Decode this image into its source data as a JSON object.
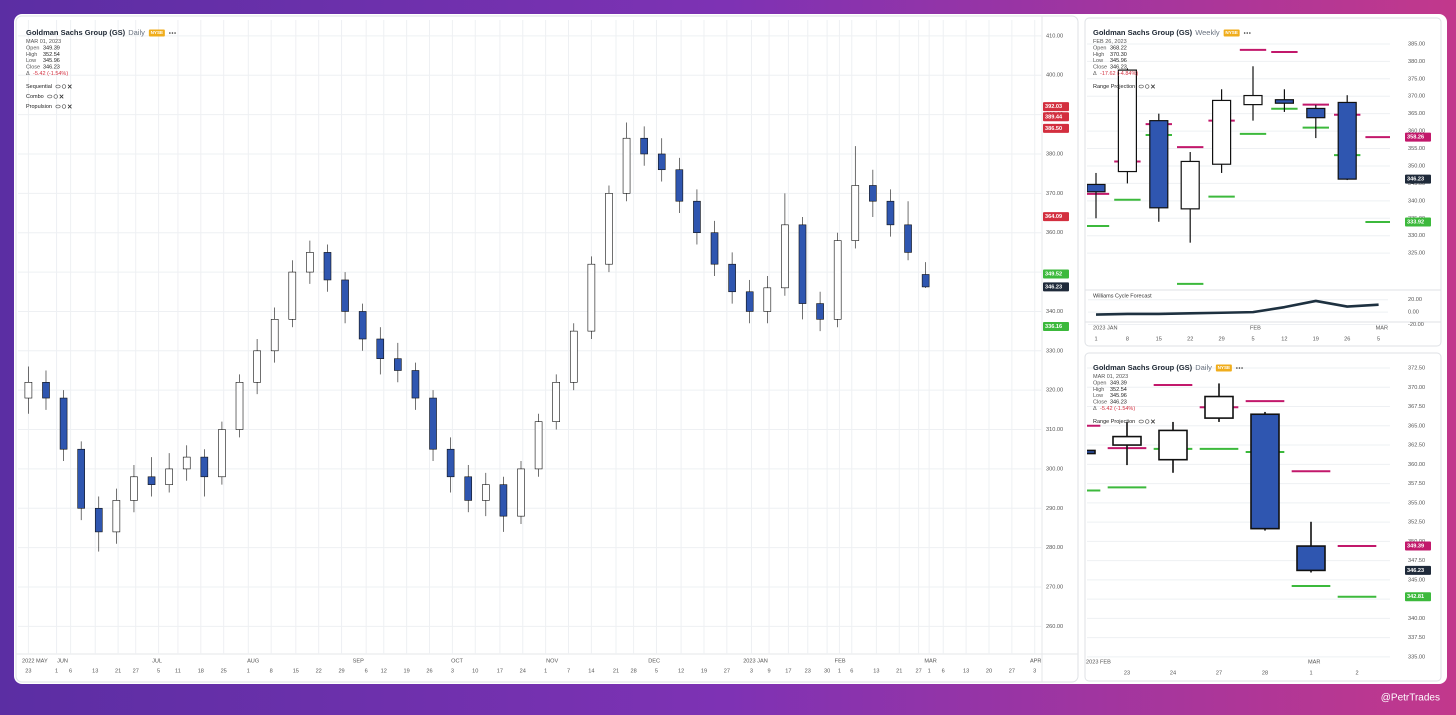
{
  "watermark": "@PetrTrades",
  "chart_data": [
    {
      "type": "candlestick",
      "title": "Goldman Sachs Group (GS)",
      "interval": "Daily",
      "exchange": "NYSE",
      "date": "MAR 01, 2023",
      "ohlc_names": [
        "Open",
        "High",
        "Low",
        "Close"
      ],
      "ohlc": [
        349.39,
        352.54,
        345.96,
        346.23
      ],
      "change_symbol": "Δ",
      "change": "-5.42 (-1.54%)",
      "indicators": [
        "Sequential",
        "Combo",
        "Propulsion"
      ],
      "up_color": "#ffffff",
      "down_color": "#2f56b0",
      "open": [
        318,
        322,
        318,
        305,
        290,
        284,
        292,
        298,
        296,
        300,
        303,
        298,
        310,
        322,
        330,
        338,
        350,
        355,
        348,
        340,
        333,
        328,
        325,
        318,
        305,
        298,
        292,
        296,
        288,
        300,
        312,
        322,
        335,
        352,
        370,
        384,
        380,
        376,
        368,
        360,
        352,
        345,
        340,
        346,
        362,
        342,
        338,
        358,
        372,
        368,
        362,
        349.39
      ],
      "high": [
        326,
        325,
        320,
        307,
        293,
        295,
        301,
        303,
        304,
        306,
        305,
        312,
        324,
        333,
        341,
        353,
        358,
        357,
        350,
        342,
        336,
        332,
        327,
        320,
        308,
        301,
        299,
        298,
        302,
        314,
        324,
        337,
        354,
        372,
        388,
        387,
        384,
        379,
        371,
        363,
        355,
        348,
        349,
        370,
        364,
        345,
        360,
        382,
        376,
        371,
        368,
        352.54
      ],
      "low": [
        314,
        315,
        302,
        287,
        279,
        281,
        289,
        293,
        294,
        297,
        293,
        296,
        308,
        319,
        327,
        336,
        347,
        345,
        337,
        330,
        324,
        322,
        315,
        302,
        294,
        289,
        288,
        284,
        286,
        298,
        310,
        320,
        333,
        350,
        368,
        377,
        373,
        365,
        357,
        349,
        342,
        337,
        337,
        344,
        338,
        335,
        336,
        356,
        364,
        359,
        353,
        345.96
      ],
      "close": [
        322,
        318,
        305,
        290,
        284,
        292,
        298,
        296,
        300,
        303,
        298,
        310,
        322,
        330,
        338,
        350,
        355,
        348,
        340,
        333,
        328,
        325,
        318,
        305,
        298,
        292,
        296,
        288,
        300,
        312,
        322,
        335,
        352,
        370,
        384,
        380,
        376,
        368,
        360,
        352,
        345,
        340,
        346,
        362,
        342,
        338,
        358,
        372,
        368,
        362,
        355,
        346.23
      ],
      "ylim": [
        254,
        412
      ],
      "yticks": [
        {
          "value": 260,
          "label": "260.00"
        },
        {
          "value": 270,
          "label": "270.00"
        },
        {
          "value": 280,
          "label": "280.00"
        },
        {
          "value": 290,
          "label": "290.00"
        },
        {
          "value": 300,
          "label": "300.00"
        },
        {
          "value": 310,
          "label": "310.00"
        },
        {
          "value": 320,
          "label": "320.00"
        },
        {
          "value": 330,
          "label": "330.00"
        },
        {
          "value": 340,
          "label": "340.00"
        },
        {
          "value": 350,
          "label": "350.00"
        },
        {
          "value": 360,
          "label": "360.00"
        },
        {
          "value": 370,
          "label": "370.00"
        },
        {
          "value": 380,
          "label": "380.00"
        },
        {
          "value": 390,
          "label": "390.00"
        },
        {
          "value": 400,
          "label": "400.00"
        },
        {
          "value": 410,
          "label": "410.00"
        }
      ],
      "xlim": [
        -0.25,
        57.5
      ],
      "xticks": [
        {
          "value": 0,
          "label": "23"
        },
        {
          "value": 1.6,
          "label": "1"
        },
        {
          "value": 2.4,
          "label": "6"
        },
        {
          "value": 3.8,
          "label": "13"
        },
        {
          "value": 5.1,
          "label": "21"
        },
        {
          "value": 6.1,
          "label": "27"
        },
        {
          "value": 7.4,
          "label": "5"
        },
        {
          "value": 8.5,
          "label": "11"
        },
        {
          "value": 9.8,
          "label": "18"
        },
        {
          "value": 11.1,
          "label": "25"
        },
        {
          "value": 12.5,
          "label": "1"
        },
        {
          "value": 13.8,
          "label": "8"
        },
        {
          "value": 15.2,
          "label": "15"
        },
        {
          "value": 16.5,
          "label": "22"
        },
        {
          "value": 17.8,
          "label": "29"
        },
        {
          "value": 19.2,
          "label": "6"
        },
        {
          "value": 20.2,
          "label": "12"
        },
        {
          "value": 21.5,
          "label": "19"
        },
        {
          "value": 22.8,
          "label": "26"
        },
        {
          "value": 24.1,
          "label": "3"
        },
        {
          "value": 25.4,
          "label": "10"
        },
        {
          "value": 26.8,
          "label": "17"
        },
        {
          "value": 28.1,
          "label": "24"
        },
        {
          "value": 29.4,
          "label": "1"
        },
        {
          "value": 30.7,
          "label": "7"
        },
        {
          "value": 32,
          "label": "14"
        },
        {
          "value": 33.4,
          "label": "21"
        },
        {
          "value": 34.4,
          "label": "28"
        },
        {
          "value": 35.7,
          "label": "5"
        },
        {
          "value": 37.1,
          "label": "12"
        },
        {
          "value": 38.4,
          "label": "19"
        },
        {
          "value": 39.7,
          "label": "27"
        },
        {
          "value": 41.1,
          "label": "3"
        },
        {
          "value": 42.1,
          "label": "9"
        },
        {
          "value": 43.2,
          "label": "17"
        },
        {
          "value": 44.3,
          "label": "23"
        },
        {
          "value": 45.4,
          "label": "30"
        },
        {
          "value": 46.1,
          "label": "1"
        },
        {
          "value": 46.8,
          "label": "6"
        },
        {
          "value": 48.2,
          "label": "13"
        },
        {
          "value": 49.5,
          "label": "21"
        },
        {
          "value": 50.6,
          "label": "27"
        },
        {
          "value": 51.2,
          "label": "1"
        },
        {
          "value": 52,
          "label": "6"
        },
        {
          "value": 53.3,
          "label": "13"
        },
        {
          "value": 54.6,
          "label": "20"
        },
        {
          "value": 55.9,
          "label": "27"
        },
        {
          "value": 57.2,
          "label": "3"
        }
      ],
      "month_ticks": [
        {
          "value": -0.2,
          "label": "2022 MAY"
        },
        {
          "value": 1.8,
          "label": "JUN"
        },
        {
          "value": 7.2,
          "label": "JUL"
        },
        {
          "value": 12.6,
          "label": "AUG"
        },
        {
          "value": 18.6,
          "label": "SEP"
        },
        {
          "value": 24.2,
          "label": "OCT"
        },
        {
          "value": 29.6,
          "label": "NOV"
        },
        {
          "value": 35.4,
          "label": "DEC"
        },
        {
          "value": 40.8,
          "label": "2023 JAN"
        },
        {
          "value": 46,
          "label": "FEB"
        },
        {
          "value": 51.1,
          "label": "MAR"
        },
        {
          "value": 57.1,
          "label": "APR"
        }
      ],
      "price_labels": [
        392.03,
        389.44,
        {
          "value": 386.5,
          "label": "386.50"
        },
        364.09,
        349.52,
        346.23,
        336.16
      ],
      "price_label_colors": [
        "#d32f3f",
        "#d32f3f",
        "#d32f3f",
        "#d32f3f",
        "#3cb93c",
        "#1f2a3a",
        "#3cb93c"
      ]
    },
    {
      "type": "candlestick",
      "title": "Goldman Sachs Group (GS)",
      "interval": "Weekly",
      "exchange": "NYSE",
      "date": "FEB 26, 2023",
      "ohlc_names": [
        "Open",
        "High",
        "Low",
        "Close"
      ],
      "ohlc": [
        368.22,
        {
          "value": 370.3,
          "label": "370.30"
        },
        345.96,
        346.23
      ],
      "change_symbol": "Δ",
      "change": "-17.62 (-4.84%)",
      "indicators": [
        "Range Projection"
      ],
      "up_color": "#ffffff",
      "down_color": "#2f56b0",
      "categories": [
        "1",
        "8",
        "15",
        "22",
        "29",
        "5",
        "12",
        "19",
        "26",
        "5"
      ],
      "month_ticks": [
        {
          "value": 0,
          "label": "2023 JAN"
        },
        {
          "value": 5,
          "label": "FEB"
        },
        {
          "value": 9,
          "label": "MAR"
        }
      ],
      "open": [
        344.7,
        348.4,
        363,
        337.7,
        350.5,
        367.6,
        369,
        366.5,
        368.22,
        null
      ],
      "high": [
        348,
        378,
        365,
        354,
        372,
        378.6,
        372,
        367.5,
        370.3,
        null
      ],
      "low": [
        335,
        345,
        334,
        328,
        348,
        363,
        365.5,
        358,
        345.96,
        null
      ],
      "close": [
        342.6,
        377.5,
        338,
        351.3,
        368.8,
        370.2,
        368,
        363.85,
        346.23,
        null
      ],
      "range_projection": {
        "high": [
          342,
          351.3,
          362,
          355.4,
          363,
          383.3,
          382.7,
          367.6,
          364.7,
          358.26
        ],
        "low": [
          332.8,
          340.3,
          358.9,
          316.2,
          341.2,
          359.2,
          366.4,
          361,
          353.1,
          333.92
        ],
        "high_color": "#c2186b",
        "low_color": "#3cb93c"
      },
      "ylim": [
        315,
        389
      ],
      "yticks": [
        {
          "value": 325,
          "label": "325.00"
        },
        {
          "value": 330,
          "label": "330.00"
        },
        {
          "value": 335,
          "label": "335.00"
        },
        {
          "value": 340,
          "label": "340.00"
        },
        {
          "value": 345,
          "label": "345.00"
        },
        {
          "value": 350,
          "label": "350.00"
        },
        {
          "value": 355,
          "label": "355.00"
        },
        {
          "value": 360,
          "label": "360.00"
        },
        {
          "value": 365,
          "label": "365.00"
        },
        {
          "value": 370,
          "label": "370.00"
        },
        {
          "value": 375,
          "label": "375.00"
        },
        {
          "value": 380,
          "label": "380.00"
        },
        {
          "value": 385,
          "label": "385.00"
        }
      ],
      "price_labels": [
        358.26,
        346.23,
        333.92
      ],
      "price_label_colors": [
        "#c2186b",
        "#1f2a3a",
        "#3cb93c"
      ],
      "subpanel": {
        "title": "Williams Cycle Forecast",
        "values": [
          -4,
          -3,
          -3,
          -2,
          -1,
          0,
          8,
          18,
          9,
          12
        ],
        "color": "#1e3140",
        "ylim": [
          -24,
          26
        ],
        "yticks": [
          {
            "value": 20,
            "label": "20.00"
          },
          {
            "value": 0,
            "label": "0.00"
          },
          {
            "value": -20,
            "label": "-20.00"
          }
        ]
      }
    },
    {
      "type": "candlestick",
      "title": "Goldman Sachs Group (GS)",
      "interval": "Daily",
      "exchange": "NYSE",
      "date": "MAR 01, 2023",
      "ohlc_names": [
        "Open",
        "High",
        "Low",
        "Close"
      ],
      "ohlc": [
        349.39,
        352.54,
        345.96,
        346.23
      ],
      "change_symbol": "Δ",
      "change": "-5.42 (-1.54%)",
      "indicators": [
        "Range Projection"
      ],
      "up_color": "#ffffff",
      "down_color": "#2f56b0",
      "categories": [
        null,
        "23",
        "24",
        "27",
        "28",
        "1",
        "2"
      ],
      "month_ticks": [
        {
          "value": 0,
          "label": "2023 FEB"
        },
        {
          "value": 5,
          "label": "MAR"
        }
      ],
      "open": [
        361.8,
        362.5,
        360.6,
        366,
        366.5,
        349.39,
        null
      ],
      "high": [
        362.2,
        365.5,
        365.5,
        370.5,
        366.8,
        352.54,
        null
      ],
      "low": [
        360.8,
        359.9,
        358.9,
        365.5,
        351.4,
        345.96,
        null
      ],
      "close": [
        361.4,
        363.6,
        364.4,
        368.8,
        351.65,
        346.23,
        null
      ],
      "range_projection": {
        "high": [
          365,
          362.1,
          370.3,
          367.4,
          368.2,
          359.1,
          349.39
        ],
        "low": [
          356.6,
          357,
          362,
          362,
          361.6,
          344.2,
          342.81
        ],
        "high_color": "#c2186b",
        "low_color": "#3cb93c"
      },
      "ylim": [
        334.6,
        373.8
      ],
      "yticks": [
        {
          "value": 335,
          "label": "335.00"
        },
        {
          "value": 337.5,
          "label": "337.50"
        },
        {
          "value": 340,
          "label": "340.00"
        },
        {
          "value": 342.5,
          "label": "342.50"
        },
        {
          "value": 345,
          "label": "345.00"
        },
        {
          "value": 347.5,
          "label": "347.50"
        },
        {
          "value": 350,
          "label": "350.00"
        },
        {
          "value": 352.5,
          "label": "352.50"
        },
        {
          "value": 355,
          "label": "355.00"
        },
        {
          "value": 357.5,
          "label": "357.50"
        },
        {
          "value": 360,
          "label": "360.00"
        },
        {
          "value": 362.5,
          "label": "362.50"
        },
        {
          "value": 365,
          "label": "365.00"
        },
        {
          "value": 367.5,
          "label": "367.50"
        },
        {
          "value": 370,
          "label": "370.00"
        },
        {
          "value": 372.5,
          "label": "372.50"
        }
      ],
      "price_labels": [
        349.39,
        346.23,
        342.81
      ],
      "price_label_colors": [
        "#c2186b",
        "#1f2a3a",
        "#3cb93c"
      ]
    }
  ]
}
